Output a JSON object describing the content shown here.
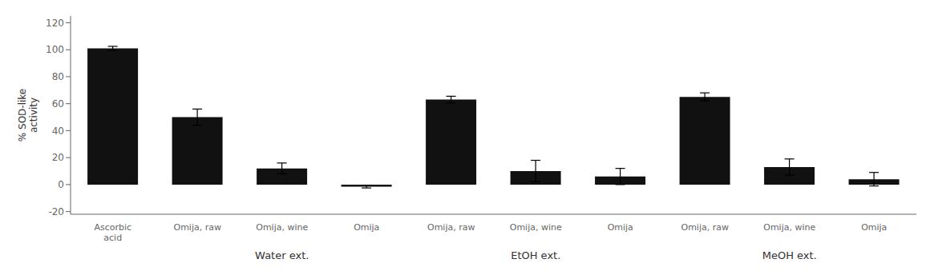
{
  "chart_data": {
    "type": "bar",
    "categories": [
      "Ascorbic\nacid",
      "Omija, raw",
      "Omija, wine",
      "Omija",
      "Omija, raw",
      "Omija, wine",
      "Omija",
      "Omija, raw",
      "Omija, wine",
      "Omija"
    ],
    "groups": [
      null,
      "Water ext.",
      "Water ext.",
      "Water ext.",
      "EtOH ext.",
      "EtOH ext.",
      "EtOH ext.",
      "MeOH ext.",
      "MeOH ext.",
      "MeOH ext."
    ],
    "values": [
      101,
      50,
      12,
      -1.5,
      63,
      10,
      6,
      65,
      13,
      4
    ],
    "errors": [
      1.5,
      6,
      4,
      1.0,
      2.5,
      8,
      6,
      3,
      6,
      5
    ],
    "color": "#111111",
    "ylabel": "% SOD-like\nactivity",
    "ylim": [
      -22,
      125
    ],
    "yticks": [
      -20,
      0,
      20,
      40,
      60,
      80,
      100,
      120
    ]
  }
}
